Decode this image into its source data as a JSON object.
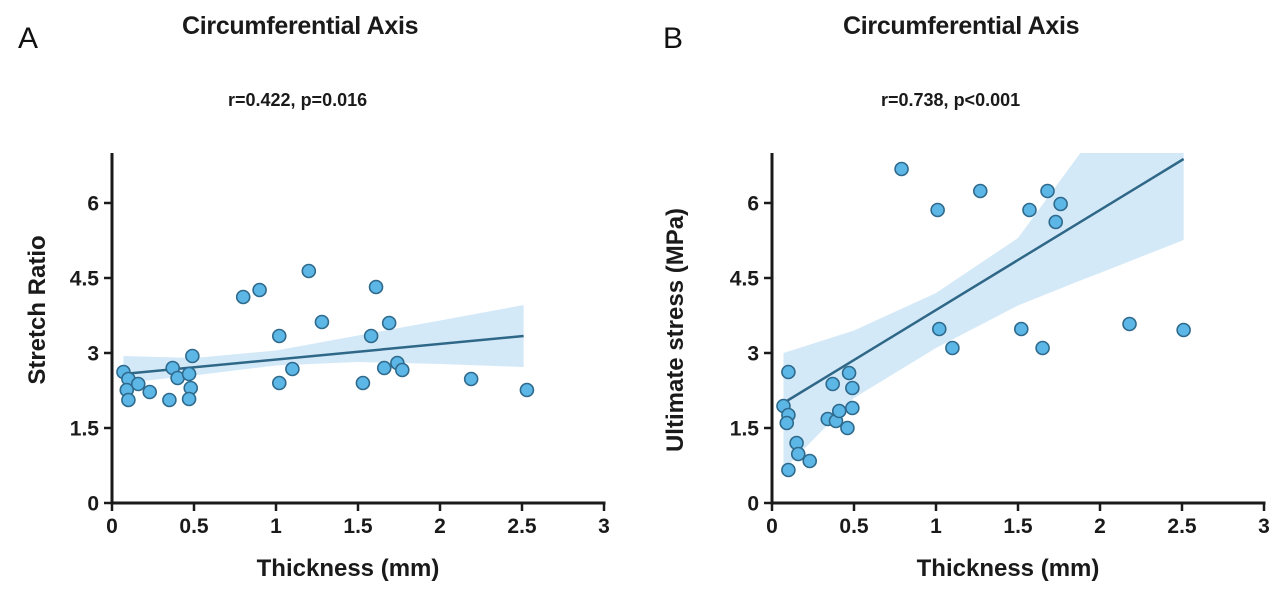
{
  "panels": [
    {
      "letter": "A",
      "title": "Circumferential Axis",
      "stat": "r=0.422, p=0.016"
    },
    {
      "letter": "B",
      "title": "Circumferential Axis",
      "stat": "r=0.738, p<0.001"
    }
  ],
  "colors": {
    "point_fill": "#5cb6e6",
    "point_stroke": "#2f6a8c",
    "line": "#2f6787",
    "ci_band": "#cfe7f7",
    "axis": "#1a1a1a"
  },
  "chart_data": [
    {
      "type": "scatter",
      "panel": "A",
      "title": "Circumferential Axis",
      "subtitle": "r=0.422, p=0.016",
      "xlabel": "Thickness (mm)",
      "ylabel": "Stretch Ratio",
      "xlim": [
        0,
        3
      ],
      "ylim": [
        0,
        7
      ],
      "xticks": [
        0,
        0.5,
        1,
        1.5,
        2,
        2.5,
        3
      ],
      "xtick_labels": [
        "0",
        "0.5",
        "1",
        "1.5",
        "2",
        "2.5",
        "3"
      ],
      "yticks": [
        0,
        1.5,
        3,
        4.5,
        6
      ],
      "ytick_labels": [
        "0",
        "1.5",
        "3",
        "4.5",
        "6"
      ],
      "grid": false,
      "points": [
        [
          0.07,
          2.62
        ],
        [
          0.1,
          2.48
        ],
        [
          0.09,
          2.26
        ],
        [
          0.1,
          2.06
        ],
        [
          0.16,
          2.38
        ],
        [
          0.23,
          2.22
        ],
        [
          0.35,
          2.06
        ],
        [
          0.37,
          2.7
        ],
        [
          0.4,
          2.5
        ],
        [
          0.47,
          2.58
        ],
        [
          0.48,
          2.3
        ],
        [
          0.47,
          2.08
        ],
        [
          0.49,
          2.94
        ],
        [
          0.8,
          4.12
        ],
        [
          0.9,
          4.26
        ],
        [
          1.2,
          4.64
        ],
        [
          1.61,
          4.32
        ],
        [
          1.02,
          3.34
        ],
        [
          1.28,
          3.62
        ],
        [
          1.58,
          3.34
        ],
        [
          1.69,
          3.6
        ],
        [
          1.02,
          2.4
        ],
        [
          1.1,
          2.68
        ],
        [
          1.66,
          2.7
        ],
        [
          1.74,
          2.8
        ],
        [
          1.77,
          2.66
        ],
        [
          1.53,
          2.4
        ],
        [
          2.19,
          2.48
        ],
        [
          2.53,
          2.26
        ]
      ],
      "regression": {
        "x_range": [
          0.07,
          2.51
        ],
        "y_range": [
          2.58,
          3.34
        ]
      },
      "ci_band": {
        "x": [
          0.07,
          0.5,
          1.0,
          1.5,
          2.0,
          2.51
        ],
        "upper": [
          2.94,
          2.9,
          3.05,
          3.35,
          3.65,
          3.96
        ],
        "lower": [
          2.4,
          2.55,
          2.75,
          2.82,
          2.78,
          2.72
        ]
      }
    },
    {
      "type": "scatter",
      "panel": "B",
      "title": "Circumferential Axis",
      "subtitle": "r=0.738, p<0.001",
      "xlabel": "Thickness (mm)",
      "ylabel": "Ultimate stress (MPa)",
      "xlim": [
        0,
        3
      ],
      "ylim": [
        0,
        7
      ],
      "xticks": [
        0,
        0.5,
        1,
        1.5,
        2,
        2.5,
        3
      ],
      "xtick_labels": [
        "0",
        "0.5",
        "1",
        "1.5",
        "2",
        "2.5",
        "3"
      ],
      "yticks": [
        0,
        1.5,
        3,
        4.5,
        6
      ],
      "ytick_labels": [
        "0",
        "1.5",
        "3",
        "4.5",
        "6"
      ],
      "grid": false,
      "points": [
        [
          0.1,
          2.62
        ],
        [
          0.07,
          1.94
        ],
        [
          0.1,
          1.76
        ],
        [
          0.09,
          1.6
        ],
        [
          0.15,
          1.2
        ],
        [
          0.16,
          0.98
        ],
        [
          0.23,
          0.84
        ],
        [
          0.1,
          0.66
        ],
        [
          0.37,
          2.38
        ],
        [
          0.47,
          2.6
        ],
        [
          0.49,
          2.3
        ],
        [
          0.34,
          1.68
        ],
        [
          0.39,
          1.64
        ],
        [
          0.41,
          1.84
        ],
        [
          0.49,
          1.9
        ],
        [
          0.46,
          1.5
        ],
        [
          0.79,
          6.68
        ],
        [
          1.01,
          5.86
        ],
        [
          1.27,
          6.24
        ],
        [
          1.68,
          6.24
        ],
        [
          1.57,
          5.86
        ],
        [
          1.76,
          5.98
        ],
        [
          1.73,
          5.62
        ],
        [
          1.02,
          3.48
        ],
        [
          1.1,
          3.1
        ],
        [
          1.52,
          3.48
        ],
        [
          1.65,
          3.1
        ],
        [
          2.18,
          3.58
        ],
        [
          2.51,
          3.46
        ]
      ],
      "regression": {
        "x_range": [
          0.07,
          2.51
        ],
        "y_range": [
          2.0,
          6.88
        ]
      },
      "ci_band": {
        "x": [
          0.07,
          0.5,
          1.0,
          1.5,
          1.88,
          2.0,
          2.51
        ],
        "upper": [
          3.0,
          3.45,
          4.2,
          5.3,
          7.0,
          7.0,
          7.0
        ],
        "lower": [
          0.66,
          2.1,
          3.1,
          3.95,
          4.45,
          4.6,
          5.26
        ]
      }
    }
  ]
}
